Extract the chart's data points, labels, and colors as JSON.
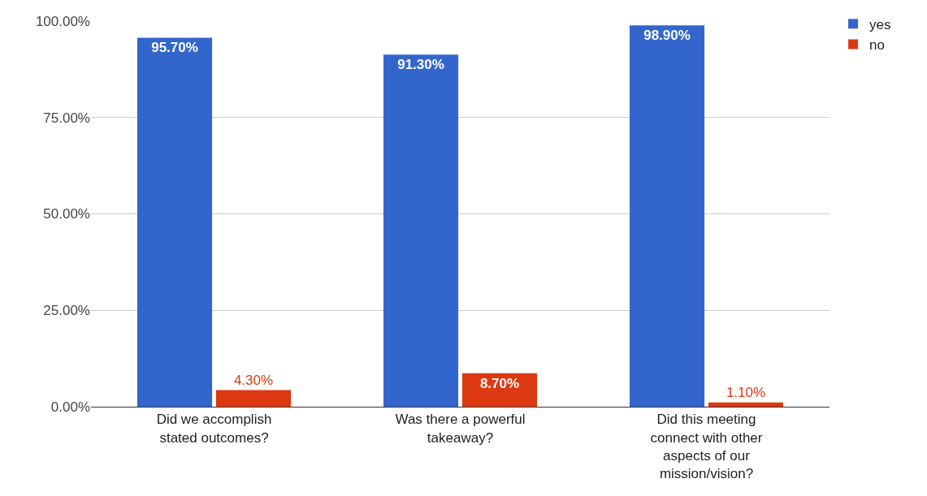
{
  "chart_data": {
    "type": "bar",
    "categories": [
      "Did we accomplish stated outcomes?",
      "Was there a powerful takeaway?",
      "Did this meeting connect with other aspects of our mission/vision?"
    ],
    "series": [
      {
        "name": "yes",
        "color": "#3366cc",
        "values": [
          95.7,
          91.3,
          98.9
        ],
        "value_labels": [
          "95.70%",
          "91.30%",
          "98.90%"
        ]
      },
      {
        "name": "no",
        "color": "#dc3912",
        "values": [
          4.3,
          8.7,
          1.1
        ],
        "value_labels": [
          "4.30%",
          "8.70%",
          "1.10%"
        ]
      }
    ],
    "ylim": [
      0,
      100
    ],
    "yticks": [
      {
        "value": 0,
        "label": "0.00%"
      },
      {
        "value": 25,
        "label": "25.00%"
      },
      {
        "value": 50,
        "label": "50.00%"
      },
      {
        "value": 75,
        "label": "75.00%"
      },
      {
        "value": 100,
        "label": "100.00%"
      }
    ],
    "grid": "y",
    "legend": "top right"
  }
}
